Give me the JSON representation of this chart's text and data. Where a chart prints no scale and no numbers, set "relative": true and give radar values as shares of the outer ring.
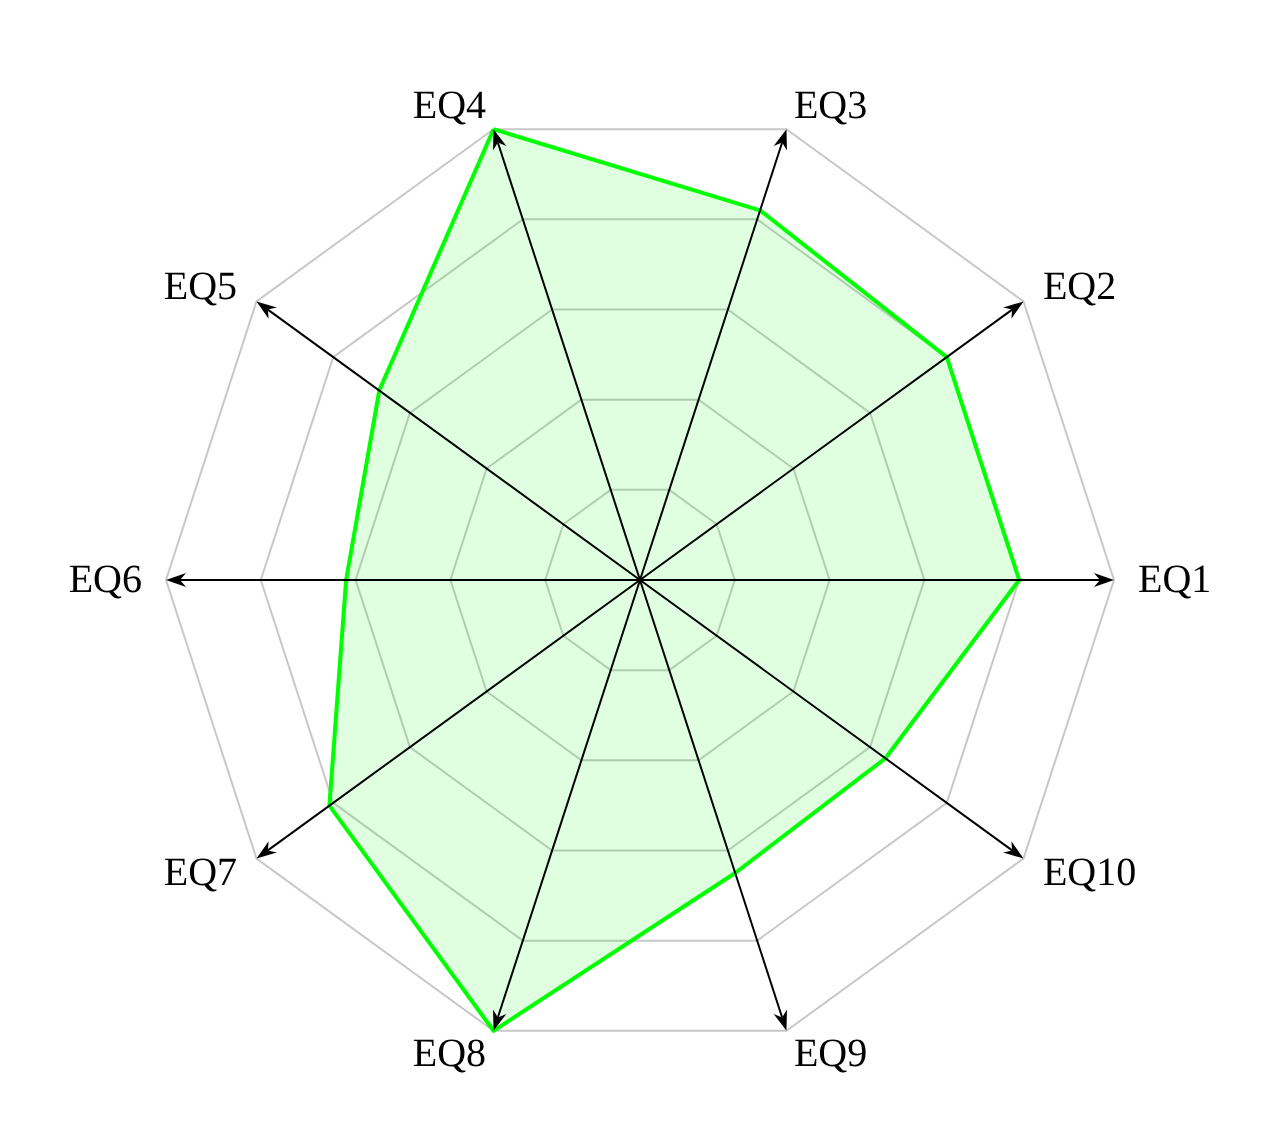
{
  "chart_data": {
    "type": "radar",
    "relative": true,
    "grid": true,
    "marker": "none",
    "categories": [
      "EQ3",
      "EQ2",
      "EQ1",
      "EQ10",
      "EQ9",
      "EQ8",
      "EQ7",
      "EQ6",
      "EQ5",
      "EQ4"
    ],
    "series": [
      {
        "color": "#00ff00",
        "values": [
          0.82,
          0.8,
          0.8,
          0.64,
          0.65,
          1,
          0.81,
          0.62,
          0.68,
          1
        ]
      }
    ]
  }
}
